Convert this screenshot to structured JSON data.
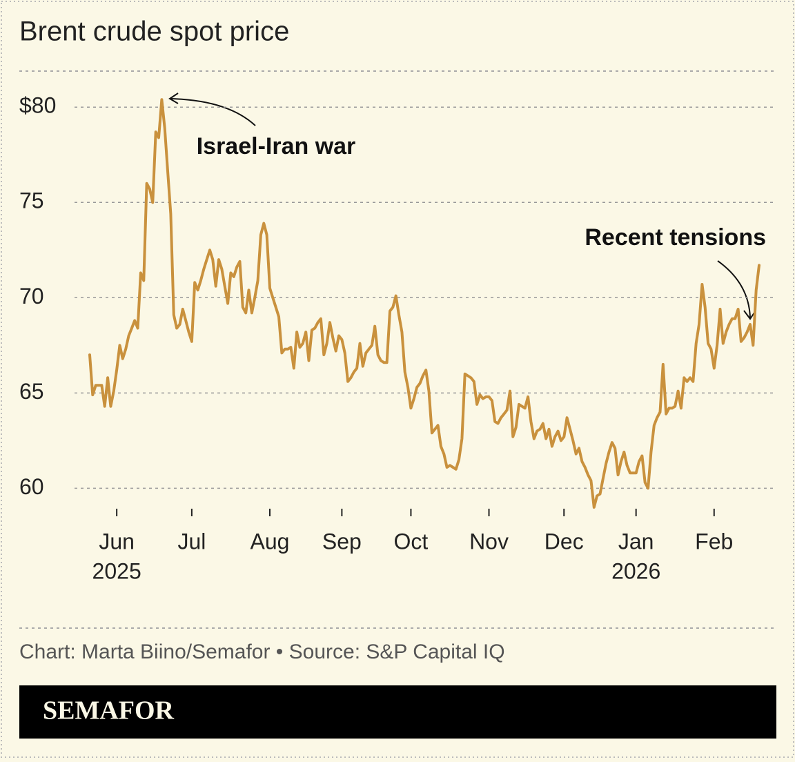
{
  "chart_data": {
    "type": "line",
    "title": "Brent crude spot price",
    "series": [
      {
        "name": "Brent crude",
        "color": "#c9913d",
        "values": [
          67.0,
          64.9,
          65.4,
          65.4,
          65.4,
          64.3,
          65.8,
          64.3,
          65.1,
          66.2,
          67.5,
          66.8,
          67.3,
          68.0,
          68.4,
          68.8,
          68.4,
          71.3,
          70.9,
          76.0,
          75.7,
          75.0,
          78.7,
          78.4,
          80.4,
          78.9,
          76.6,
          74.4,
          69.1,
          68.4,
          68.6,
          69.4,
          68.8,
          68.2,
          67.7,
          70.8,
          70.4,
          70.9,
          71.5,
          72.0,
          72.5,
          72.0,
          70.6,
          72.0,
          71.5,
          70.6,
          69.7,
          71.3,
          71.1,
          71.6,
          71.9,
          69.5,
          69.2,
          70.4,
          69.2,
          70.0,
          70.9,
          73.3,
          73.9,
          73.3,
          70.5,
          70.0,
          69.5,
          69.0,
          67.1,
          67.3,
          67.3,
          67.4,
          66.3,
          68.2,
          67.4,
          67.6,
          68.2,
          66.7,
          68.3,
          68.4,
          68.7,
          68.9,
          67.0,
          67.6,
          68.7,
          67.9,
          67.2,
          68.0,
          67.8,
          67.1,
          65.6,
          65.8,
          66.1,
          66.3,
          67.6,
          66.4,
          67.1,
          67.3,
          67.5,
          68.5,
          67.0,
          66.7,
          66.6,
          66.6,
          69.3,
          69.5,
          70.1,
          69.1,
          68.2,
          66.1,
          65.3,
          64.2,
          64.7,
          65.3,
          65.5,
          65.9,
          66.2,
          65.1,
          62.9,
          63.1,
          63.3,
          62.2,
          61.8,
          61.1,
          61.2,
          61.1,
          61.0,
          61.5,
          62.6,
          66.0,
          65.9,
          65.8,
          65.6,
          64.4,
          64.9,
          64.7,
          64.8,
          64.8,
          64.6,
          63.5,
          63.4,
          63.7,
          63.9,
          64.1,
          65.1,
          62.7,
          63.2,
          64.4,
          64.3,
          64.2,
          64.8,
          63.5,
          62.6,
          63.0,
          63.1,
          63.4,
          62.6,
          63.1,
          62.2,
          62.7,
          63.0,
          62.5,
          62.7,
          63.7,
          63.1,
          62.5,
          61.8,
          62.1,
          61.4,
          61.1,
          60.7,
          60.4,
          59.0,
          59.6,
          59.7,
          60.5,
          61.3,
          61.9,
          62.4,
          62.1,
          60.7,
          61.4,
          61.9,
          61.2,
          60.8,
          60.8,
          60.8,
          61.4,
          61.7,
          60.3,
          60.0,
          61.9,
          63.3,
          63.7,
          64.0,
          66.5,
          63.9,
          64.2,
          64.2,
          64.3,
          65.1,
          64.2,
          65.8,
          65.6,
          65.8,
          65.6,
          67.6,
          68.6,
          70.7,
          69.5,
          67.6,
          67.3,
          66.3,
          67.5,
          69.4,
          67.6,
          68.2,
          68.6,
          68.9,
          68.9,
          69.4,
          67.7,
          67.9,
          68.2,
          68.6,
          67.5,
          70.4,
          71.7
        ]
      }
    ],
    "xlim": [
      0,
      223
    ],
    "xticks": [
      {
        "value": 9,
        "label": "Jun"
      },
      {
        "value": 34,
        "label": "Jul"
      },
      {
        "value": 60,
        "label": "Aug"
      },
      {
        "value": 84,
        "label": "Sep"
      },
      {
        "value": 107,
        "label": "Oct"
      },
      {
        "value": 133,
        "label": "Nov"
      },
      {
        "value": 158,
        "label": "Dec"
      },
      {
        "value": 182,
        "label": "Jan"
      },
      {
        "value": 208,
        "label": "Feb"
      }
    ],
    "x_year_labels": [
      {
        "value": 9,
        "label": "2025"
      },
      {
        "value": 182,
        "label": "2026"
      }
    ],
    "ylim": [
      59,
      82
    ],
    "yticks": [
      {
        "value": 80,
        "label": "$80"
      },
      75,
      70,
      65,
      60
    ],
    "grid": true,
    "annotations": [
      "Israel-Iran war",
      "Recent tensions"
    ],
    "source": "Chart: Marta Biino/Semafor • Source: S&P Capital IQ",
    "brand": "SEMAFOR"
  }
}
